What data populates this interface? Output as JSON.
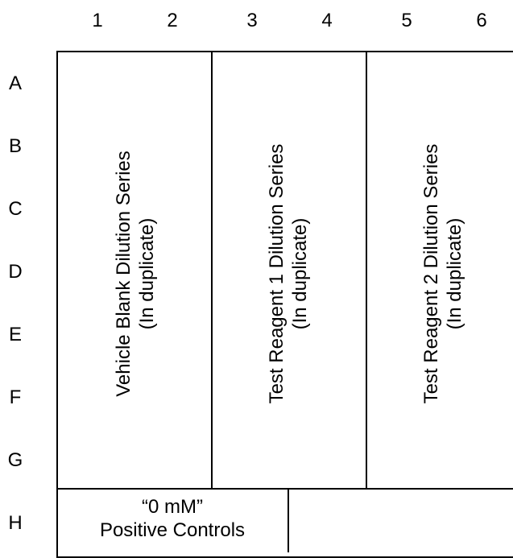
{
  "columns": [
    "1",
    "2",
    "3",
    "4",
    "5",
    "6"
  ],
  "rows": [
    "A",
    "B",
    "C",
    "D",
    "E",
    "F",
    "G",
    "H"
  ],
  "blocks": [
    {
      "line1": "Vehicle Blank Dilution Series",
      "line2": "(In duplicate)"
    },
    {
      "line1": "Test Reagent 1 Dilution Series",
      "line2": "(In duplicate)"
    },
    {
      "line1": "Test Reagent 2 Dilution Series",
      "line2": "(In duplicate)"
    }
  ],
  "controls": {
    "line1": "“0 mM”",
    "line2": "Positive Controls"
  }
}
